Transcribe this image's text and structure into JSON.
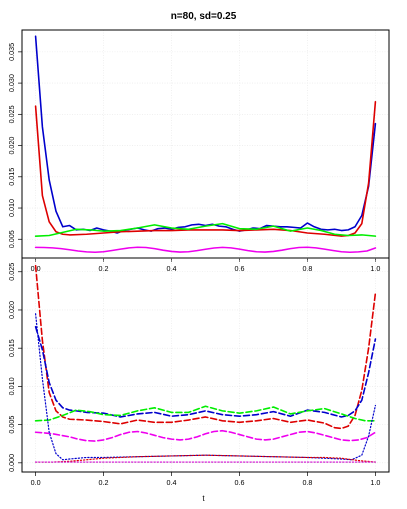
{
  "chart_data": [
    {
      "type": "line",
      "title": "n=80, sd=0.25",
      "xlabel": "",
      "ylabel": "",
      "xlim": [
        -0.04,
        1.04
      ],
      "ylim": [
        0.002,
        0.0385
      ],
      "xticks": [
        "0.0",
        "0.2",
        "0.4",
        "0.6",
        "0.8",
        "1.0"
      ],
      "yticks": [
        "0.005",
        "0.010",
        "0.015",
        "0.020",
        "0.025",
        "0.030",
        "0.035"
      ],
      "grid": true,
      "series": [
        {
          "color": "#0000cc",
          "style": "solid",
          "x": [
            0.0,
            0.02,
            0.04,
            0.06,
            0.08,
            0.1,
            0.12,
            0.14,
            0.16,
            0.18,
            0.2,
            0.22,
            0.24,
            0.26,
            0.28,
            0.3,
            0.32,
            0.34,
            0.36,
            0.38,
            0.4,
            0.42,
            0.44,
            0.46,
            0.48,
            0.5,
            0.52,
            0.54,
            0.56,
            0.58,
            0.6,
            0.62,
            0.64,
            0.66,
            0.68,
            0.7,
            0.72,
            0.74,
            0.76,
            0.78,
            0.8,
            0.82,
            0.84,
            0.86,
            0.88,
            0.9,
            0.92,
            0.94,
            0.96,
            0.98,
            1.0
          ],
          "y": [
            0.0375,
            0.023,
            0.0145,
            0.0095,
            0.007,
            0.0072,
            0.0065,
            0.0066,
            0.0064,
            0.0068,
            0.0065,
            0.0063,
            0.006,
            0.0064,
            0.0066,
            0.0068,
            0.0065,
            0.0063,
            0.0067,
            0.0068,
            0.0066,
            0.0069,
            0.007,
            0.0073,
            0.0074,
            0.0072,
            0.0074,
            0.0071,
            0.007,
            0.0066,
            0.0063,
            0.0065,
            0.0068,
            0.0067,
            0.0072,
            0.0071,
            0.007,
            0.007,
            0.0069,
            0.0068,
            0.0076,
            0.007,
            0.0066,
            0.0065,
            0.0066,
            0.0064,
            0.0065,
            0.007,
            0.0088,
            0.0135,
            0.0235
          ]
        },
        {
          "color": "#dd0000",
          "style": "solid",
          "x": [
            0.0,
            0.02,
            0.04,
            0.06,
            0.08,
            0.1,
            0.15,
            0.2,
            0.25,
            0.3,
            0.35,
            0.4,
            0.45,
            0.5,
            0.55,
            0.6,
            0.65,
            0.7,
            0.75,
            0.8,
            0.85,
            0.9,
            0.92,
            0.94,
            0.96,
            0.98,
            1.0
          ],
          "y": [
            0.0263,
            0.012,
            0.0078,
            0.0062,
            0.0058,
            0.0057,
            0.0058,
            0.006,
            0.0062,
            0.0063,
            0.0064,
            0.0064,
            0.0065,
            0.0065,
            0.0065,
            0.0064,
            0.0065,
            0.0066,
            0.0064,
            0.006,
            0.0058,
            0.0055,
            0.0056,
            0.006,
            0.0075,
            0.014,
            0.027
          ]
        },
        {
          "color": "#00ee00",
          "style": "solid",
          "x": [
            0.0,
            0.04,
            0.08,
            0.12,
            0.16,
            0.2,
            0.25,
            0.3,
            0.35,
            0.4,
            0.45,
            0.5,
            0.55,
            0.6,
            0.65,
            0.7,
            0.75,
            0.8,
            0.84,
            0.88,
            0.92,
            0.96,
            1.0
          ],
          "y": [
            0.0055,
            0.0056,
            0.0061,
            0.0066,
            0.0065,
            0.0063,
            0.0064,
            0.0068,
            0.0073,
            0.0068,
            0.0066,
            0.0071,
            0.0075,
            0.0067,
            0.0066,
            0.0071,
            0.0063,
            0.0068,
            0.0064,
            0.0058,
            0.0056,
            0.0057,
            0.0055
          ]
        },
        {
          "color": "#ee00ee",
          "style": "solid",
          "model": "wave",
          "x": [
            0.0,
            0.025,
            0.05,
            0.075,
            0.1,
            0.125,
            0.15,
            0.175,
            0.2,
            0.225,
            0.25,
            0.275,
            0.3,
            0.325,
            0.35,
            0.375,
            0.4,
            0.425,
            0.45,
            0.475,
            0.5,
            0.525,
            0.55,
            0.575,
            0.6,
            0.625,
            0.65,
            0.675,
            0.7,
            0.725,
            0.75,
            0.775,
            0.8,
            0.825,
            0.85,
            0.875,
            0.9,
            0.925,
            0.95,
            0.975,
            1.0
          ],
          "y": [
            0.0037,
            0.00368,
            0.00362,
            0.0035,
            0.00332,
            0.00312,
            0.00298,
            0.00292,
            0.003,
            0.0032,
            0.00342,
            0.00362,
            0.00372,
            0.00368,
            0.0035,
            0.00325,
            0.00305,
            0.00295,
            0.003,
            0.00318,
            0.0034,
            0.0036,
            0.0037,
            0.00362,
            0.00342,
            0.00318,
            0.003,
            0.00295,
            0.00305,
            0.00325,
            0.0035,
            0.00368,
            0.00372,
            0.00362,
            0.00342,
            0.0032,
            0.003,
            0.00292,
            0.00298,
            0.00312,
            0.0036
          ]
        }
      ]
    },
    {
      "type": "line",
      "title": "",
      "xlabel": "t",
      "ylabel": "",
      "xlim": [
        -0.04,
        1.04
      ],
      "ylim": [
        -0.0012,
        0.0268
      ],
      "xticks": [
        "0.0",
        "0.2",
        "0.4",
        "0.6",
        "0.8",
        "1.0"
      ],
      "yticks": [
        "0.000",
        "0.005",
        "0.010",
        "0.015",
        "0.020",
        "0.025"
      ],
      "grid": true,
      "series": [
        {
          "color": "#dd0000",
          "style": "dashed",
          "x": [
            0.0,
            0.02,
            0.04,
            0.06,
            0.08,
            0.1,
            0.15,
            0.2,
            0.25,
            0.3,
            0.35,
            0.4,
            0.45,
            0.5,
            0.55,
            0.6,
            0.65,
            0.7,
            0.75,
            0.8,
            0.85,
            0.88,
            0.9,
            0.92,
            0.94,
            0.96,
            0.98,
            1.0
          ],
          "y": [
            0.0258,
            0.016,
            0.0092,
            0.0068,
            0.006,
            0.0057,
            0.0056,
            0.0054,
            0.0051,
            0.0056,
            0.0053,
            0.0053,
            0.0056,
            0.006,
            0.0055,
            0.0053,
            0.0055,
            0.0058,
            0.0053,
            0.0056,
            0.0052,
            0.0046,
            0.0045,
            0.0048,
            0.0062,
            0.0095,
            0.015,
            0.0222
          ]
        },
        {
          "color": "#0000cc",
          "style": "dashed",
          "x": [
            0.0,
            0.02,
            0.04,
            0.06,
            0.08,
            0.1,
            0.12,
            0.15,
            0.2,
            0.25,
            0.3,
            0.35,
            0.4,
            0.45,
            0.5,
            0.55,
            0.6,
            0.65,
            0.7,
            0.75,
            0.8,
            0.85,
            0.9,
            0.92,
            0.94,
            0.96,
            0.98,
            1.0
          ],
          "y": [
            0.0178,
            0.0148,
            0.0105,
            0.0082,
            0.0072,
            0.0069,
            0.0068,
            0.0066,
            0.0065,
            0.006,
            0.0064,
            0.0066,
            0.0061,
            0.0063,
            0.0068,
            0.0063,
            0.0061,
            0.0063,
            0.0067,
            0.0061,
            0.0069,
            0.0066,
            0.006,
            0.0062,
            0.0068,
            0.0082,
            0.0118,
            0.0162
          ]
        },
        {
          "color": "#00ee00",
          "style": "dashed",
          "x": [
            0.0,
            0.04,
            0.08,
            0.12,
            0.16,
            0.2,
            0.25,
            0.3,
            0.35,
            0.4,
            0.45,
            0.5,
            0.55,
            0.6,
            0.65,
            0.7,
            0.75,
            0.8,
            0.85,
            0.9,
            0.94,
            0.97,
            1.0
          ],
          "y": [
            0.0055,
            0.0056,
            0.0062,
            0.0069,
            0.0067,
            0.0063,
            0.0062,
            0.0068,
            0.0072,
            0.0066,
            0.0066,
            0.0074,
            0.0068,
            0.0065,
            0.0068,
            0.0073,
            0.0064,
            0.0068,
            0.0071,
            0.0064,
            0.0058,
            0.0055,
            0.0055
          ]
        },
        {
          "color": "#ee00ee",
          "style": "dashed",
          "model": "wave",
          "x": [
            0.0,
            0.025,
            0.05,
            0.075,
            0.1,
            0.125,
            0.15,
            0.175,
            0.2,
            0.225,
            0.25,
            0.275,
            0.3,
            0.325,
            0.35,
            0.375,
            0.4,
            0.425,
            0.45,
            0.475,
            0.5,
            0.525,
            0.55,
            0.575,
            0.6,
            0.625,
            0.65,
            0.675,
            0.7,
            0.725,
            0.75,
            0.775,
            0.8,
            0.825,
            0.85,
            0.875,
            0.9,
            0.925,
            0.95,
            0.975,
            1.0
          ],
          "y": [
            0.004,
            0.00392,
            0.0038,
            0.0036,
            0.0034,
            0.0031,
            0.0029,
            0.00285,
            0.003,
            0.0033,
            0.0037,
            0.004,
            0.0041,
            0.0039,
            0.0036,
            0.0033,
            0.0031,
            0.003,
            0.0031,
            0.0034,
            0.0038,
            0.0041,
            0.0042,
            0.004,
            0.0037,
            0.0034,
            0.0031,
            0.003,
            0.0031,
            0.0034,
            0.0037,
            0.004,
            0.0041,
            0.0039,
            0.0036,
            0.0033,
            0.003,
            0.0029,
            0.003,
            0.0033,
            0.004
          ]
        },
        {
          "color": "#0000cc",
          "style": "dotted",
          "x": [
            0.0,
            0.02,
            0.04,
            0.06,
            0.08,
            0.1,
            0.15,
            0.2,
            0.3,
            0.4,
            0.5,
            0.6,
            0.7,
            0.8,
            0.85,
            0.9,
            0.93,
            0.96,
            0.98,
            1.0
          ],
          "y": [
            0.0195,
            0.011,
            0.004,
            0.0012,
            0.0004,
            0.0005,
            0.0007,
            0.0007,
            0.0008,
            0.0009,
            0.001,
            0.0009,
            0.0008,
            0.0007,
            0.0006,
            0.0005,
            0.0004,
            0.001,
            0.0035,
            0.0075
          ]
        },
        {
          "color": "#dd0000",
          "style": "dotted",
          "x": [
            0.0,
            0.05,
            0.1,
            0.15,
            0.2,
            0.3,
            0.4,
            0.5,
            0.6,
            0.7,
            0.8,
            0.85,
            0.9,
            0.95,
            1.0
          ],
          "y": [
            0.0001,
            0.0001,
            0.0002,
            0.0004,
            0.0006,
            0.0008,
            0.0009,
            0.001,
            0.0009,
            0.0008,
            0.0007,
            0.0007,
            0.0006,
            0.0003,
            0.0001
          ]
        },
        {
          "color": "#00ee00",
          "style": "dotted",
          "x": [
            0.0,
            0.2,
            0.4,
            0.6,
            0.8,
            1.0
          ],
          "y": [
            0.0001,
            0.0001,
            0.0001,
            0.0001,
            0.0001,
            0.0001
          ]
        },
        {
          "color": "#ee00ee",
          "style": "dotted",
          "x": [
            0.0,
            0.2,
            0.4,
            0.6,
            0.8,
            1.0
          ],
          "y": [
            0.0001,
            0.0001,
            0.0001,
            0.0001,
            0.0001,
            0.0001
          ]
        }
      ]
    }
  ]
}
